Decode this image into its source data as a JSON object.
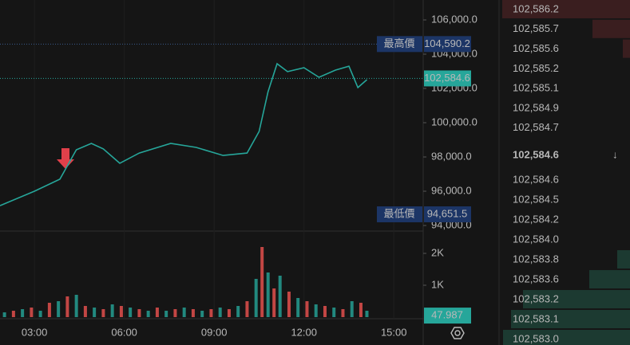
{
  "chart_data": [
    {
      "type": "line",
      "color": "#26a69a",
      "x": [
        1.85,
        3,
        3.85,
        4.4,
        4.9,
        5.3,
        5.85,
        6.5,
        7.55,
        8.4,
        9.3,
        10.1,
        10.5,
        10.8,
        11.1,
        11.45,
        12,
        12.5,
        13.05,
        13.5,
        13.8,
        14.1
      ],
      "values": [
        95160,
        96000,
        96700,
        98420,
        98790,
        98470,
        97630,
        98230,
        98790,
        98560,
        98090,
        98230,
        99490,
        101810,
        103440,
        102980,
        103210,
        102650,
        103070,
        103300,
        102050,
        102510
      ],
      "xlim": [
        1.85,
        15.98
      ],
      "xticks": [
        {
          "value": 3,
          "label": "03:00"
        },
        {
          "value": 6,
          "label": "06:00"
        },
        {
          "value": 9,
          "label": "09:00"
        },
        {
          "value": 12,
          "label": "12:00"
        },
        {
          "value": 15,
          "label": "15:00"
        }
      ],
      "ylim": [
        93674,
        107163
      ],
      "yticks": [
        {
          "value": 106000,
          "label": "106,000.0"
        },
        {
          "value": 104000,
          "label": "104,000.0"
        },
        {
          "value": 102000,
          "label": "102,000.0"
        },
        {
          "value": 100000,
          "label": "100,000.0"
        },
        {
          "value": 98000,
          "label": "98,000.0"
        },
        {
          "value": 96000,
          "label": "96,000.0"
        },
        {
          "value": 94000,
          "label": "94,000.0"
        }
      ],
      "high": {
        "title": "最高價",
        "value": 104590.2,
        "value_label": "104,590.2"
      },
      "low": {
        "title": "最低價",
        "value": 94651.5,
        "value_label": "94,651.5"
      },
      "last": {
        "value": 102584.6,
        "value_label": "102,584.6"
      }
    },
    {
      "type": "bar",
      "colors": [
        "#26a69a",
        "#ef5350"
      ],
      "x": [
        2.0,
        2.3,
        2.6,
        2.9,
        3.2,
        3.5,
        3.8,
        4.1,
        4.4,
        4.7,
        5.0,
        5.3,
        5.6,
        5.9,
        6.2,
        6.5,
        6.8,
        7.1,
        7.4,
        7.7,
        8.0,
        8.3,
        8.6,
        8.9,
        9.2,
        9.5,
        9.8,
        10.1,
        10.4,
        10.6,
        10.8,
        11.0,
        11.2,
        11.5,
        11.8,
        12.1,
        12.4,
        12.7,
        13.0,
        13.3,
        13.6,
        13.9,
        14.1
      ],
      "values": [
        150,
        200,
        250,
        300,
        200,
        450,
        500,
        650,
        700,
        350,
        300,
        250,
        400,
        350,
        300,
        250,
        200,
        300,
        200,
        250,
        300,
        250,
        200,
        250,
        300,
        250,
        350,
        500,
        1200,
        2200,
        1400,
        900,
        1300,
        800,
        600,
        500,
        400,
        350,
        300,
        250,
        500,
        450,
        200
      ],
      "xlim": [
        1.85,
        15.98
      ],
      "ylim": [
        0,
        2700
      ],
      "yticks": [
        {
          "value": 1000,
          "label": "1K"
        },
        {
          "value": 2000,
          "label": "2K"
        }
      ],
      "last": 47.987
    }
  ],
  "order_book": {
    "asks": [
      {
        "price": "102,586.2",
        "depth": 160
      },
      {
        "price": "102,585.7",
        "depth": 47
      },
      {
        "price": "102,585.6",
        "depth": 9
      },
      {
        "price": "102,585.2",
        "depth": 0
      },
      {
        "price": "102,585.1",
        "depth": 0
      },
      {
        "price": "102,584.9",
        "depth": 0
      },
      {
        "price": "102,584.7",
        "depth": 0
      }
    ],
    "current": {
      "price": "102,584.6",
      "arrow": "↓"
    },
    "bids": [
      {
        "price": "102,584.6",
        "depth": 0
      },
      {
        "price": "102,584.5",
        "depth": 0
      },
      {
        "price": "102,584.2",
        "depth": 0
      },
      {
        "price": "102,584.0",
        "depth": 0
      },
      {
        "price": "102,583.8",
        "depth": 16
      },
      {
        "price": "102,583.6",
        "depth": 51
      },
      {
        "price": "102,583.2",
        "depth": 134
      },
      {
        "price": "102,583.1",
        "depth": 149
      },
      {
        "price": "102,583.0",
        "depth": 159
      }
    ]
  }
}
